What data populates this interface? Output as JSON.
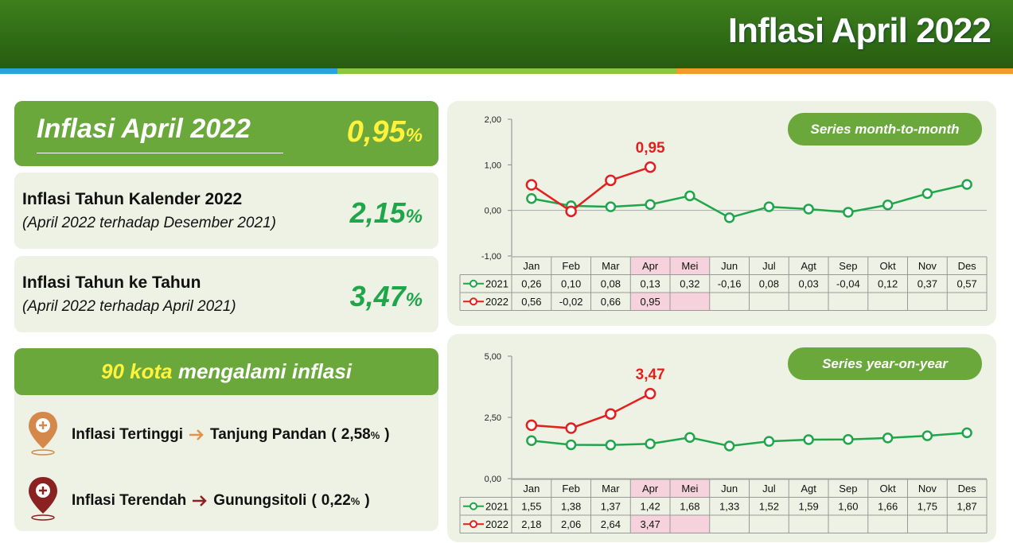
{
  "header": {
    "title": "Inflasi April 2022"
  },
  "summary": {
    "title": "Inflasi April 2022",
    "value": "0,95",
    "unit": "%"
  },
  "cards": [
    {
      "title": "Inflasi Tahun Kalender 2022",
      "subtitle": "(April 2022 terhadap Desember 2021)",
      "value": "2,15",
      "unit": "%"
    },
    {
      "title": "Inflasi Tahun ke Tahun",
      "subtitle": "(April 2022 terhadap April 2021)",
      "value": "3,47",
      "unit": "%"
    }
  ],
  "cities": {
    "count": "90 kota",
    "title": "mengalami inflasi",
    "items": [
      {
        "label": "Inflasi Tertinggi",
        "city": "Tanjung Pandan",
        "open": "(",
        "value": "2,58",
        "unit": "%",
        "close": ")"
      },
      {
        "label": "Inflasi Terendah",
        "city": "Gunungsitoli",
        "open": "(",
        "value": "0,22",
        "unit": "%",
        "close": ")"
      }
    ]
  },
  "chart_data": [
    {
      "type": "line",
      "label": "Series month-to-month",
      "categories": [
        "Jan",
        "Feb",
        "Mar",
        "Apr",
        "Mei",
        "Jun",
        "Jul",
        "Agt",
        "Sep",
        "Okt",
        "Nov",
        "Des"
      ],
      "ylim": [
        -1,
        2
      ],
      "yticks": [
        {
          "value": -1,
          "label": "-1,00"
        },
        {
          "value": 0,
          "label": "0,00"
        },
        {
          "value": 1,
          "label": "1,00"
        },
        {
          "value": 2,
          "label": "2,00"
        }
      ],
      "highlight_categories": [
        "Apr",
        "Mei"
      ],
      "annotation": "0,95",
      "series": [
        {
          "name": "2021",
          "color": "#1fa64a",
          "values": [
            0.26,
            0.1,
            0.08,
            0.13,
            0.32,
            -0.16,
            0.08,
            0.03,
            -0.04,
            0.12,
            0.37,
            0.57
          ],
          "value_labels": [
            "0,26",
            "0,10",
            "0,08",
            "0,13",
            "0,32",
            "-0,16",
            "0,08",
            "0,03",
            "-0,04",
            "0,12",
            "0,37",
            "0,57"
          ]
        },
        {
          "name": "2022",
          "color": "#e3201f",
          "values": [
            0.56,
            -0.02,
            0.66,
            0.95,
            null,
            null,
            null,
            null,
            null,
            null,
            null,
            null
          ],
          "value_labels": [
            "0,56",
            "-0,02",
            "0,66",
            "0,95",
            null,
            null,
            null,
            null,
            null,
            null,
            null,
            null
          ]
        }
      ]
    },
    {
      "type": "line",
      "label": "Series year-on-year",
      "categories": [
        "Jan",
        "Feb",
        "Mar",
        "Apr",
        "Mei",
        "Jun",
        "Jul",
        "Agt",
        "Sep",
        "Okt",
        "Nov",
        "Des"
      ],
      "ylim": [
        0,
        5
      ],
      "yticks": [
        {
          "value": 0,
          "label": "0,00"
        },
        {
          "value": 2.5,
          "label": "2,50"
        },
        {
          "value": 5,
          "label": "5,00"
        }
      ],
      "highlight_categories": [
        "Apr",
        "Mei"
      ],
      "annotation": "3,47",
      "series": [
        {
          "name": "2021",
          "color": "#1fa64a",
          "values": [
            1.55,
            1.38,
            1.37,
            1.42,
            1.68,
            1.33,
            1.52,
            1.59,
            1.6,
            1.66,
            1.75,
            1.87
          ],
          "value_labels": [
            "1,55",
            "1,38",
            "1,37",
            "1,42",
            "1,68",
            "1,33",
            "1,52",
            "1,59",
            "1,60",
            "1,66",
            "1,75",
            "1,87"
          ]
        },
        {
          "name": "2022",
          "color": "#e3201f",
          "values": [
            2.18,
            2.06,
            2.64,
            3.47,
            null,
            null,
            null,
            null,
            null,
            null,
            null,
            null
          ],
          "value_labels": [
            "2,18",
            "2,06",
            "2,64",
            "3,47",
            null,
            null,
            null,
            null,
            null,
            null,
            null,
            null
          ]
        }
      ]
    }
  ]
}
